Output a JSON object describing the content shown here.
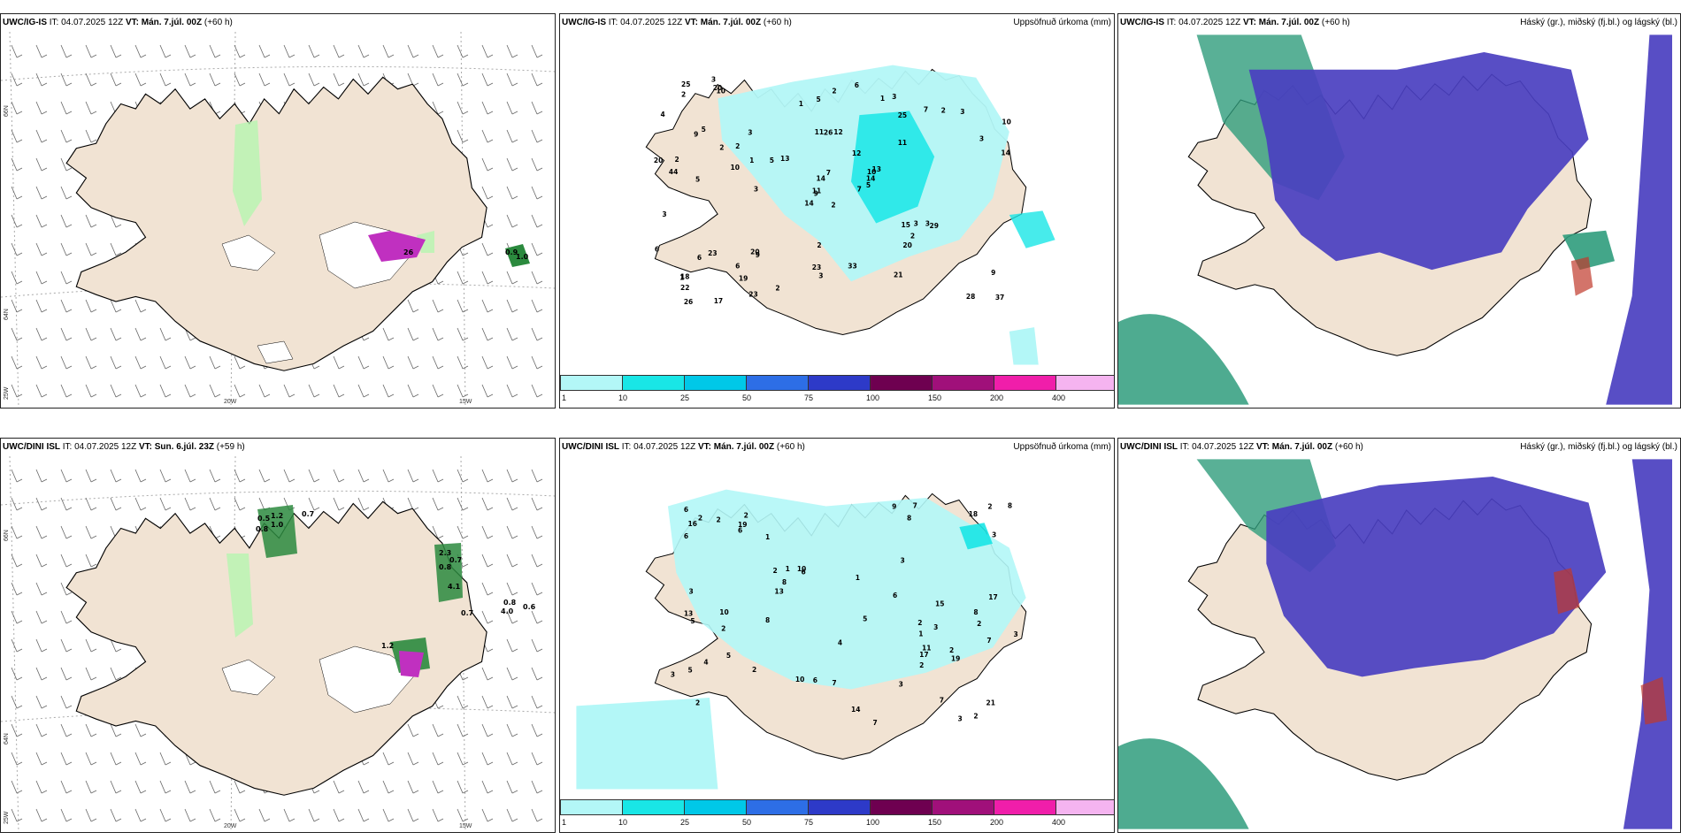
{
  "panels": [
    {
      "model": "UWC/IG-IS",
      "it": "IT: 04.07.2025 12Z",
      "vt": "VT: Mán. 7.júl. 00Z",
      "lead": "(+60 h)",
      "right": ""
    },
    {
      "model": "UWC/IG-IS",
      "it": "IT: 04.07.2025 12Z",
      "vt": "VT: Mán. 7.júl. 00Z",
      "lead": "(+60 h)",
      "right": "Uppsöfnuð úrkoma (mm)"
    },
    {
      "model": "UWC/IG-IS",
      "it": "IT: 04.07.2025 12Z",
      "vt": "VT: Mán. 7.júl. 00Z",
      "lead": "(+60 h)",
      "right": "Háský (gr.), miðský (fj.bl.) og lágský (bl.)"
    },
    {
      "model": "UWC/DINI ISL",
      "it": "IT: 04.07.2025 12Z",
      "vt": "VT: Sun. 6.júl. 23Z",
      "lead": "(+59 h)",
      "right": ""
    },
    {
      "model": "UWC/DINI ISL",
      "it": "IT: 04.07.2025 12Z",
      "vt": "VT: Mán. 7.júl. 00Z",
      "lead": "(+60 h)",
      "right": "Uppsöfnuð úrkoma (mm)"
    },
    {
      "model": "UWC/DINI ISL",
      "it": "IT: 04.07.2025 12Z",
      "vt": "VT: Mán. 7.júl. 00Z",
      "lead": "(+60 h)",
      "right": "Háský (gr.), miðský (fj.bl.) og lágský (bl.)"
    }
  ],
  "axes": {
    "lat66": "66N",
    "lat64": "64N",
    "lon25": "25W",
    "lon20": "20W",
    "lon15": "15W"
  },
  "colorbar": {
    "labels": [
      "1",
      "10",
      "25",
      "50",
      "75",
      "100",
      "150",
      "200",
      "400"
    ],
    "colors": [
      "#b3f7f7",
      "#19e6e6",
      "#00c8e8",
      "#2d6ee6",
      "#2d3ac8",
      "#6e0050",
      "#a0107a",
      "#f01eaa",
      "#f5b4f0"
    ]
  },
  "precip_top": {
    "values": [
      "2",
      "9",
      "9",
      "18",
      "10",
      "9",
      "3",
      "12",
      "25",
      "7",
      "10",
      "37",
      "5",
      "10",
      "14",
      "11",
      "17",
      "11",
      "12",
      "23",
      "13",
      "22",
      "19",
      "26",
      "13",
      "29",
      "5",
      "5",
      "44",
      "15",
      "14",
      "11",
      "23",
      "14",
      "3",
      "7",
      "20",
      "28",
      "9",
      "3",
      "6",
      "5",
      "10",
      "20",
      "23",
      "20",
      "14",
      "26",
      "3",
      "5",
      "6",
      "3",
      "4",
      "2",
      "21",
      "6",
      "20",
      "25",
      "33",
      "3",
      "2",
      "3",
      "2",
      "2",
      "2",
      "3",
      "1",
      "1",
      "7",
      "6",
      "2",
      "2",
      "3",
      "1",
      "1",
      "2",
      "2",
      "3"
    ]
  },
  "precip_bottom": {
    "values": [
      "1",
      "2",
      "2",
      "2",
      "6",
      "7",
      "5",
      "8",
      "2",
      "7",
      "6",
      "13",
      "16",
      "21",
      "10",
      "17",
      "4",
      "5",
      "10",
      "5",
      "8",
      "18",
      "13",
      "7",
      "9",
      "19",
      "11",
      "5",
      "6",
      "15",
      "14",
      "3",
      "8",
      "8",
      "8",
      "19",
      "17",
      "10",
      "7",
      "4",
      "3",
      "7",
      "2",
      "6",
      "2",
      "2",
      "3",
      "2",
      "6",
      "3",
      "3",
      "1",
      "2",
      "2",
      "2",
      "3",
      "3",
      "6",
      "2",
      "2",
      "3",
      "1",
      "1"
    ]
  },
  "precip_top_main_labels": [
    "2",
    "9",
    "9",
    "18",
    "10",
    "9",
    "3",
    "12",
    "25",
    "7",
    "10",
    "37",
    "17",
    "23",
    "13",
    "22",
    "19",
    "26",
    "44",
    "29",
    "20",
    "28",
    "21",
    "20",
    "25",
    "33"
  ],
  "precip_bottom_main_labels": [
    "6",
    "5",
    "7",
    "13",
    "16",
    "21",
    "17",
    "10",
    "18",
    "13",
    "19",
    "15",
    "14",
    "19",
    "17",
    "10",
    "6",
    "3",
    "2",
    "2",
    "3"
  ],
  "conv_top_labels": [
    "26",
    "1.0",
    "0.9"
  ],
  "conv_bottom_labels": [
    "1.2",
    "1.0",
    "0.5",
    "0.8",
    "0.7",
    "2.3",
    "0.7",
    "0.8",
    "4.1",
    "0.7",
    "4.0",
    "0.6",
    "0.8",
    "1.2"
  ]
}
